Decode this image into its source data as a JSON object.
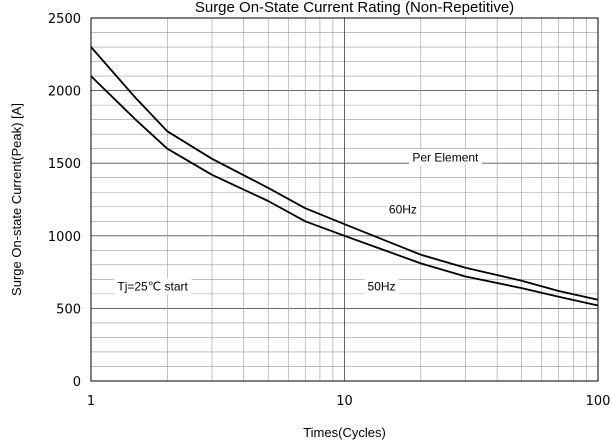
{
  "chart_data": {
    "type": "line",
    "title": "Surge On-State Current Rating (Non-Repetitive)",
    "xlabel": "Times(Cycles)",
    "ylabel": "Surge On-state Current(Peak) [A]",
    "xscale": "log",
    "xlim": [
      1,
      100
    ],
    "ylim": [
      0,
      2500
    ],
    "xticks": [
      1,
      10,
      100
    ],
    "xtick_labels": [
      "1",
      "10",
      "100"
    ],
    "yticks": [
      0,
      500,
      1000,
      1500,
      2000,
      2500
    ],
    "ytick_labels": [
      "0",
      "500",
      "1000",
      "1500",
      "2000",
      "2500"
    ],
    "grid": true,
    "series": [
      {
        "name": "60Hz",
        "color": "#000000",
        "points": [
          [
            1,
            2300
          ],
          [
            1.5,
            1950
          ],
          [
            2,
            1720
          ],
          [
            3,
            1530
          ],
          [
            5,
            1330
          ],
          [
            7,
            1190
          ],
          [
            10,
            1080
          ],
          [
            20,
            870
          ],
          [
            30,
            780
          ],
          [
            50,
            690
          ],
          [
            70,
            620
          ],
          [
            100,
            560
          ]
        ]
      },
      {
        "name": "50Hz",
        "color": "#000000",
        "points": [
          [
            1,
            2100
          ],
          [
            1.5,
            1800
          ],
          [
            2,
            1600
          ],
          [
            3,
            1420
          ],
          [
            5,
            1240
          ],
          [
            7,
            1100
          ],
          [
            10,
            1000
          ],
          [
            20,
            810
          ],
          [
            30,
            720
          ],
          [
            50,
            640
          ],
          [
            70,
            580
          ],
          [
            100,
            520
          ]
        ]
      }
    ],
    "annotations": [
      {
        "text": "Per Element",
        "x": 25,
        "y": 1540
      },
      {
        "text": "60Hz",
        "x": 17,
        "y": 1180
      },
      {
        "text": "50Hz",
        "x": 14,
        "y": 650
      },
      {
        "text": "Tj=25℃ start",
        "x": 1.75,
        "y": 650
      }
    ]
  }
}
